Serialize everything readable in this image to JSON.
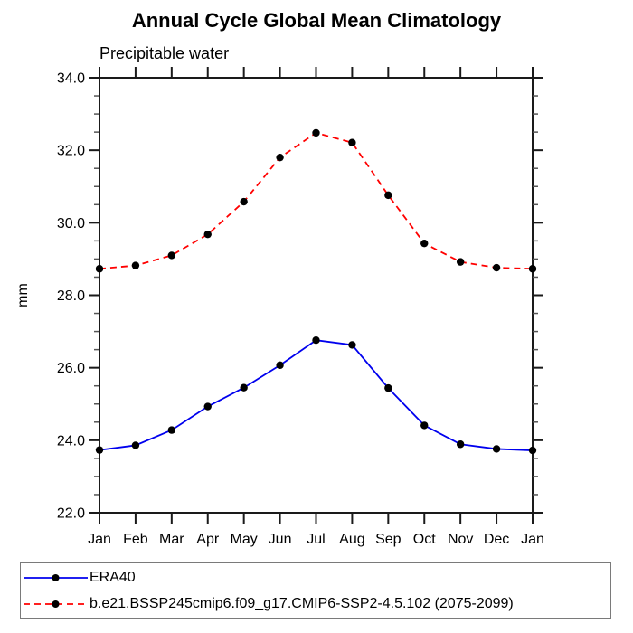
{
  "chart_data": {
    "type": "line",
    "title": "Annual Cycle Global Mean Climatology",
    "subtitle": "Precipitable water",
    "ylabel": "mm",
    "xlabel": "",
    "x_categories": [
      "Jan",
      "Feb",
      "Mar",
      "Apr",
      "May",
      "Jun",
      "Jul",
      "Aug",
      "Sep",
      "Oct",
      "Nov",
      "Dec",
      "Jan"
    ],
    "ylim": [
      22.0,
      34.0
    ],
    "y_major_step": 2.0,
    "y_minor_step": 0.5,
    "y_tick_labels": [
      "22.0",
      "24.0",
      "26.0",
      "28.0",
      "30.0",
      "32.0",
      "34.0"
    ],
    "grid": false,
    "legend_position": "bottom",
    "axis_color": "#1a1a1a",
    "minor_tick_color": "#555555",
    "series": [
      {
        "name": "ERA40",
        "color": "#0000ee",
        "line_style": "solid",
        "marker": "filled-circle",
        "marker_color": "#000000",
        "values": [
          23.73,
          23.86,
          24.28,
          24.93,
          25.45,
          26.07,
          26.76,
          26.63,
          25.44,
          24.41,
          23.89,
          23.76,
          23.72
        ]
      },
      {
        "name": "b.e21.BSSP245cmip6.f09_g17.CMIP6-SSP2-4.5.102 (2075-2099)",
        "color": "#ff0000",
        "line_style": "dashed",
        "marker": "filled-circle",
        "marker_color": "#000000",
        "values": [
          28.73,
          28.82,
          29.1,
          29.68,
          30.58,
          31.8,
          32.48,
          32.21,
          30.76,
          29.43,
          28.92,
          28.76,
          28.73
        ]
      }
    ]
  }
}
